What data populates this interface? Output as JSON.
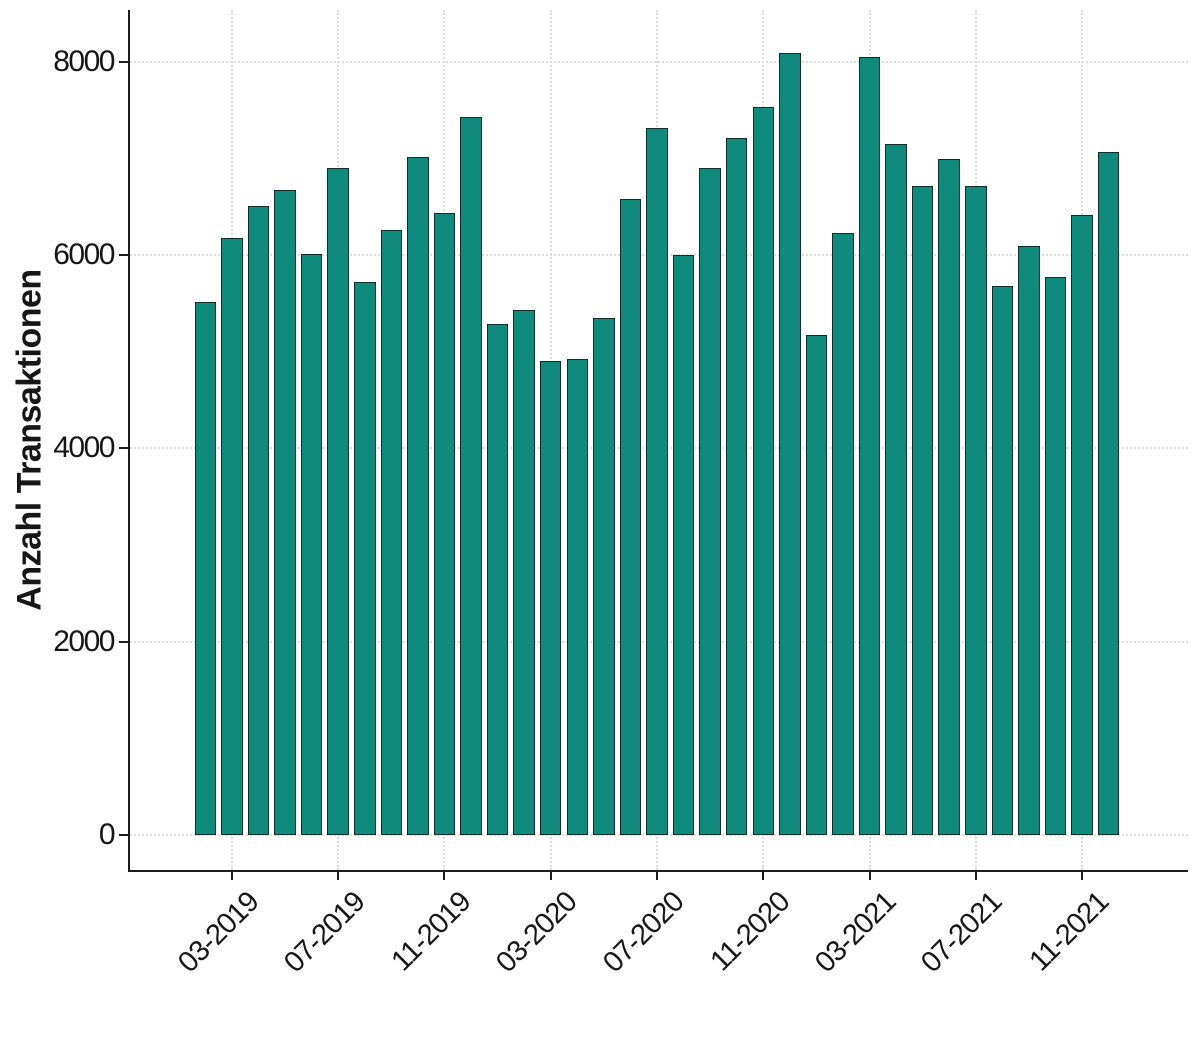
{
  "chart_data": {
    "type": "bar",
    "title": "",
    "xlabel": "",
    "ylabel": "Anzahl Transaktionen",
    "categories": [
      "02-2019",
      "03-2019",
      "04-2019",
      "05-2019",
      "06-2019",
      "07-2019",
      "08-2019",
      "09-2019",
      "10-2019",
      "11-2019",
      "12-2019",
      "01-2020",
      "02-2020",
      "03-2020",
      "04-2020",
      "05-2020",
      "06-2020",
      "07-2020",
      "08-2020",
      "09-2020",
      "10-2020",
      "11-2020",
      "12-2020",
      "01-2021",
      "02-2021",
      "03-2021",
      "04-2021",
      "05-2021",
      "06-2021",
      "07-2021",
      "08-2021",
      "09-2021",
      "10-2021",
      "11-2021",
      "12-2021"
    ],
    "values": [
      5510,
      6180,
      6510,
      6670,
      6010,
      6900,
      5720,
      6260,
      7020,
      6440,
      7430,
      5290,
      5430,
      4900,
      4930,
      5350,
      6580,
      7320,
      6000,
      6900,
      7210,
      7530,
      8090,
      5170,
      6230,
      8050,
      7150,
      6710,
      6990,
      6710,
      5680,
      6090,
      5770,
      6420,
      7070
    ],
    "x_tick_labels": [
      "03-2019",
      "07-2019",
      "11-2019",
      "03-2020",
      "07-2020",
      "11-2020",
      "03-2021",
      "07-2021",
      "11-2021"
    ],
    "y_ticks": [
      0,
      2000,
      4000,
      6000,
      8000
    ],
    "ylim": [
      0,
      8530
    ],
    "grid": "dotted",
    "legend": "none",
    "bar_color": "#0f8a7c",
    "bar_border_color": "#0d2f2a",
    "axis_color": "#1c1c1c",
    "gridline_color": "#dcdcdc",
    "text_color": "#161616",
    "background": "#ffffff"
  }
}
